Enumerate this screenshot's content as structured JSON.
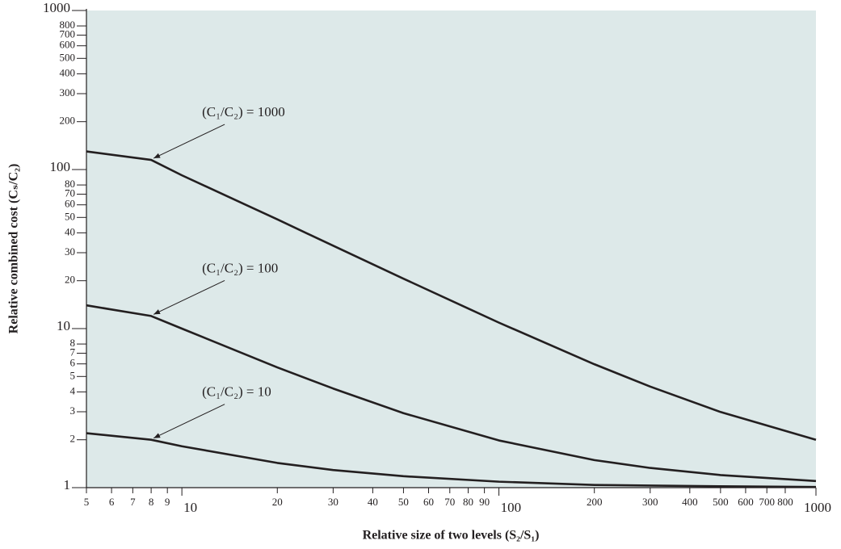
{
  "chart_data": {
    "type": "line",
    "xlabel": "Relative size of two levels (S₂/S₁)",
    "ylabel": "Relative combined cost (Cₛ/C₂)",
    "xscale": "log",
    "yscale": "log",
    "xlim": [
      5,
      1000
    ],
    "ylim": [
      1,
      1000
    ],
    "xticks": [
      5,
      6,
      7,
      8,
      9,
      10,
      20,
      30,
      40,
      50,
      60,
      70,
      80,
      90,
      100,
      200,
      300,
      400,
      500,
      600,
      700,
      800,
      1000
    ],
    "yticks": [
      1,
      2,
      3,
      4,
      5,
      6,
      7,
      8,
      10,
      20,
      30,
      40,
      50,
      60,
      70,
      80,
      100,
      200,
      300,
      400,
      500,
      600,
      700,
      800,
      1000
    ],
    "background": "#dde9e9",
    "x": [
      5,
      8,
      10,
      20,
      30,
      50,
      100,
      200,
      300,
      500,
      1000
    ],
    "series": [
      {
        "name": "(C₁/C₂) = 1000",
        "color": "#231f20",
        "values": [
          130,
          115,
          92,
          48.6,
          33.2,
          20.6,
          10.9,
          5.97,
          4.32,
          2.99,
          2.0
        ]
      },
      {
        "name": "(C₁/C₂) = 100",
        "color": "#231f20",
        "values": [
          14,
          12,
          10,
          5.7,
          4.2,
          2.94,
          1.98,
          1.49,
          1.33,
          1.2,
          1.1
        ]
      },
      {
        "name": "(C₁/C₂) = 10",
        "color": "#231f20",
        "values": [
          2.2,
          2.0,
          1.82,
          1.43,
          1.29,
          1.18,
          1.09,
          1.04,
          1.03,
          1.02,
          1.01
        ]
      }
    ]
  }
}
